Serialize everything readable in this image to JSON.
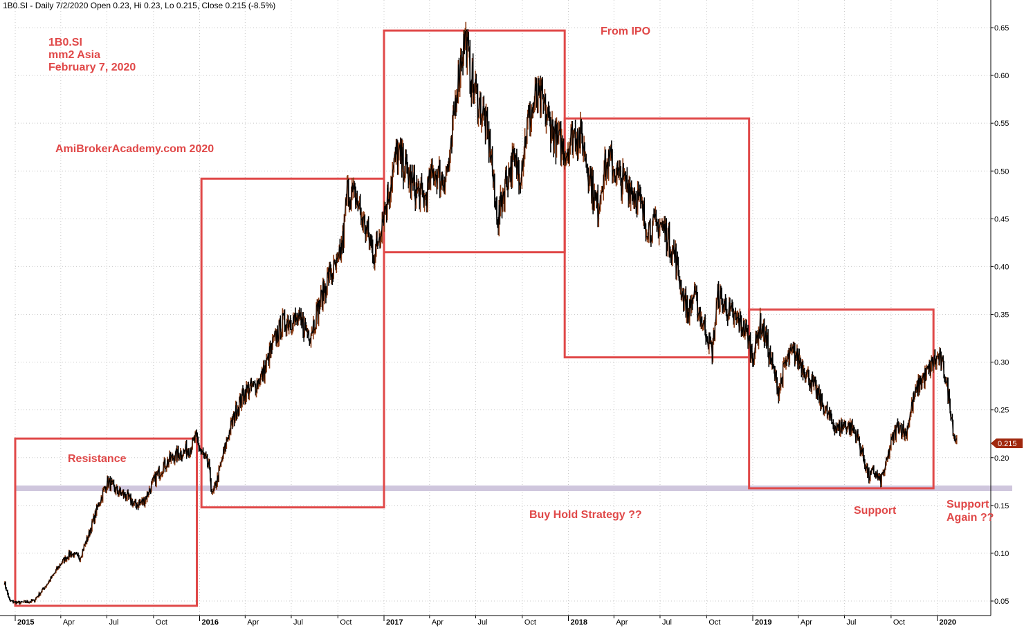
{
  "header": {
    "text": "1B0.SI - Daily 7/2/2020 Open 0.23, Hi 0.23, Lo 0.215, Close 0.215 (-8.5%)"
  },
  "annotations": {
    "symbol": "1B0.SI",
    "company": "mm2 Asia",
    "date": "February 7, 2020",
    "site": "AmiBrokerAcademy.com   2020",
    "from_ipo": "From IPO",
    "resistance": "Resistance",
    "buy_hold": "Buy Hold Strategy ??",
    "support": "Support",
    "support_again_1": "Support",
    "support_again_2": "Again ??"
  },
  "last_price_label": "0.215",
  "colors": {
    "candle": "#000000",
    "candle_up": "#8b3a12",
    "box": "#e04848",
    "support_band": "#cfc6dd",
    "price_tag": "#a0280e",
    "grid": "#c8c8c8"
  },
  "chart_data": {
    "type": "line",
    "title": "1B0.SI - Daily 7/2/2020",
    "ylim": [
      0.04,
      0.67
    ],
    "y_ticks": [
      "0.05",
      "0.10",
      "0.15",
      "0.20",
      "0.25",
      "0.30",
      "0.35",
      "0.40",
      "0.45",
      "0.50",
      "0.55",
      "0.60",
      "0.65"
    ],
    "x_labels": [
      {
        "label": "2015",
        "t": 0.0,
        "bold": true
      },
      {
        "label": "Apr",
        "t": 0.247,
        "bold": false
      },
      {
        "label": "Jul",
        "t": 0.497,
        "bold": false
      },
      {
        "label": "Oct",
        "t": 0.75,
        "bold": false
      },
      {
        "label": "2016",
        "t": 1.0,
        "bold": true
      },
      {
        "label": "Apr",
        "t": 1.247,
        "bold": false
      },
      {
        "label": "Jul",
        "t": 1.497,
        "bold": false
      },
      {
        "label": "Oct",
        "t": 1.75,
        "bold": false
      },
      {
        "label": "2017",
        "t": 2.0,
        "bold": true
      },
      {
        "label": "Apr",
        "t": 2.247,
        "bold": false
      },
      {
        "label": "Jul",
        "t": 2.497,
        "bold": false
      },
      {
        "label": "Oct",
        "t": 2.75,
        "bold": false
      },
      {
        "label": "2018",
        "t": 3.0,
        "bold": true
      },
      {
        "label": "Apr",
        "t": 3.247,
        "bold": false
      },
      {
        "label": "Jul",
        "t": 3.497,
        "bold": false
      },
      {
        "label": "Oct",
        "t": 3.75,
        "bold": false
      },
      {
        "label": "2019",
        "t": 4.0,
        "bold": true
      },
      {
        "label": "Apr",
        "t": 4.247,
        "bold": false
      },
      {
        "label": "Jul",
        "t": 4.497,
        "bold": false
      },
      {
        "label": "Oct",
        "t": 4.75,
        "bold": false
      },
      {
        "label": "2020",
        "t": 5.0,
        "bold": true
      }
    ],
    "series": [
      {
        "points": [
          [
            -0.06,
            0.07
          ],
          [
            -0.03,
            0.05
          ],
          [
            0.02,
            0.048
          ],
          [
            0.1,
            0.05
          ],
          [
            0.15,
            0.062
          ],
          [
            0.2,
            0.075
          ],
          [
            0.25,
            0.09
          ],
          [
            0.3,
            0.1
          ],
          [
            0.35,
            0.095
          ],
          [
            0.4,
            0.12
          ],
          [
            0.45,
            0.15
          ],
          [
            0.5,
            0.175
          ],
          [
            0.55,
            0.165
          ],
          [
            0.6,
            0.16
          ],
          [
            0.65,
            0.15
          ],
          [
            0.7,
            0.155
          ],
          [
            0.75,
            0.175
          ],
          [
            0.8,
            0.19
          ],
          [
            0.85,
            0.2
          ],
          [
            0.9,
            0.205
          ],
          [
            0.95,
            0.21
          ],
          [
            0.98,
            0.22
          ],
          [
            1.0,
            0.21
          ],
          [
            1.05,
            0.19
          ],
          [
            1.07,
            0.16
          ],
          [
            1.1,
            0.18
          ],
          [
            1.15,
            0.22
          ],
          [
            1.2,
            0.25
          ],
          [
            1.25,
            0.27
          ],
          [
            1.3,
            0.275
          ],
          [
            1.35,
            0.29
          ],
          [
            1.4,
            0.32
          ],
          [
            1.45,
            0.34
          ],
          [
            1.5,
            0.345
          ],
          [
            1.55,
            0.34
          ],
          [
            1.6,
            0.33
          ],
          [
            1.65,
            0.36
          ],
          [
            1.7,
            0.39
          ],
          [
            1.75,
            0.4
          ],
          [
            1.78,
            0.43
          ],
          [
            1.8,
            0.48
          ],
          [
            1.85,
            0.47
          ],
          [
            1.88,
            0.45
          ],
          [
            1.92,
            0.43
          ],
          [
            1.95,
            0.41
          ],
          [
            1.99,
            0.45
          ],
          [
            2.03,
            0.48
          ],
          [
            2.07,
            0.52
          ],
          [
            2.12,
            0.5
          ],
          [
            2.17,
            0.48
          ],
          [
            2.22,
            0.47
          ],
          [
            2.27,
            0.5
          ],
          [
            2.32,
            0.49
          ],
          [
            2.36,
            0.51
          ],
          [
            2.39,
            0.58
          ],
          [
            2.42,
            0.62
          ],
          [
            2.44,
            0.64
          ],
          [
            2.47,
            0.6
          ],
          [
            2.5,
            0.58
          ],
          [
            2.55,
            0.55
          ],
          [
            2.58,
            0.52
          ],
          [
            2.6,
            0.47
          ],
          [
            2.62,
            0.45
          ],
          [
            2.66,
            0.49
          ],
          [
            2.7,
            0.51
          ],
          [
            2.74,
            0.5
          ],
          [
            2.78,
            0.55
          ],
          [
            2.82,
            0.575
          ],
          [
            2.86,
            0.57
          ],
          [
            2.9,
            0.55
          ],
          [
            2.94,
            0.53
          ],
          [
            2.99,
            0.52
          ],
          [
            3.03,
            0.54
          ],
          [
            3.07,
            0.535
          ],
          [
            3.1,
            0.51
          ],
          [
            3.13,
            0.48
          ],
          [
            3.16,
            0.46
          ],
          [
            3.19,
            0.5
          ],
          [
            3.23,
            0.51
          ],
          [
            3.28,
            0.49
          ],
          [
            3.33,
            0.485
          ],
          [
            3.38,
            0.47
          ],
          [
            3.42,
            0.445
          ],
          [
            3.46,
            0.44
          ],
          [
            3.5,
            0.445
          ],
          [
            3.54,
            0.43
          ],
          [
            3.58,
            0.41
          ],
          [
            3.62,
            0.37
          ],
          [
            3.65,
            0.35
          ],
          [
            3.68,
            0.37
          ],
          [
            3.72,
            0.345
          ],
          [
            3.75,
            0.33
          ],
          [
            3.78,
            0.31
          ],
          [
            3.81,
            0.37
          ],
          [
            3.84,
            0.36
          ],
          [
            3.88,
            0.35
          ],
          [
            3.93,
            0.34
          ],
          [
            3.97,
            0.33
          ],
          [
            4.0,
            0.305
          ],
          [
            4.04,
            0.34
          ],
          [
            4.07,
            0.325
          ],
          [
            4.1,
            0.3
          ],
          [
            4.14,
            0.27
          ],
          [
            4.18,
            0.3
          ],
          [
            4.22,
            0.31
          ],
          [
            4.26,
            0.3
          ],
          [
            4.3,
            0.285
          ],
          [
            4.34,
            0.27
          ],
          [
            4.38,
            0.255
          ],
          [
            4.42,
            0.24
          ],
          [
            4.46,
            0.23
          ],
          [
            4.5,
            0.235
          ],
          [
            4.54,
            0.23
          ],
          [
            4.57,
            0.22
          ],
          [
            4.6,
            0.2
          ],
          [
            4.63,
            0.18
          ],
          [
            4.66,
            0.185
          ],
          [
            4.69,
            0.175
          ],
          [
            4.72,
            0.19
          ],
          [
            4.75,
            0.215
          ],
          [
            4.79,
            0.235
          ],
          [
            4.83,
            0.225
          ],
          [
            4.87,
            0.26
          ],
          [
            4.91,
            0.28
          ],
          [
            4.95,
            0.29
          ],
          [
            4.98,
            0.3
          ],
          [
            5.01,
            0.305
          ],
          [
            5.04,
            0.29
          ],
          [
            5.07,
            0.255
          ],
          [
            5.09,
            0.225
          ],
          [
            5.11,
            0.215
          ]
        ]
      }
    ],
    "boxes": [
      {
        "t0": 0.0,
        "t1": 0.985,
        "top": 0.22,
        "bottom": 0.045
      },
      {
        "t0": 1.01,
        "t1": 2.0,
        "top": 0.492,
        "bottom": 0.148
      },
      {
        "t0": 2.0,
        "t1": 2.98,
        "top": 0.647,
        "bottom": 0.415
      },
      {
        "t0": 2.98,
        "t1": 3.98,
        "top": 0.555,
        "bottom": 0.305
      },
      {
        "t0": 3.98,
        "t1": 4.98,
        "top": 0.355,
        "bottom": 0.168
      }
    ],
    "support_level": 0.168,
    "last_value": 0.215
  }
}
